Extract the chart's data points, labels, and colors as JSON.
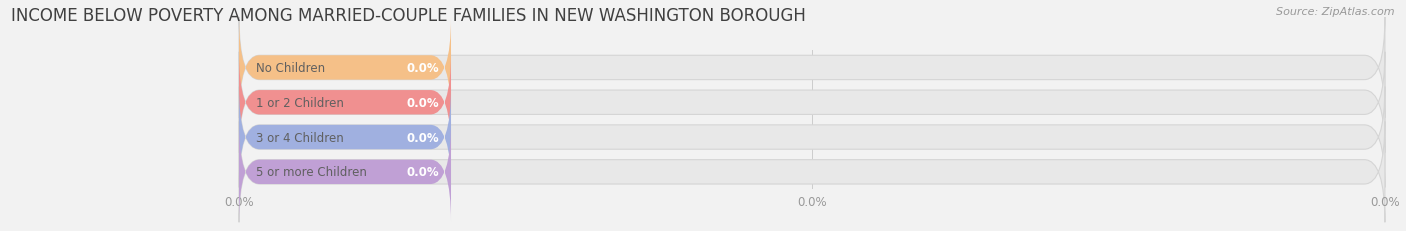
{
  "title": "INCOME BELOW POVERTY AMONG MARRIED-COUPLE FAMILIES IN NEW WASHINGTON BOROUGH",
  "source": "Source: ZipAtlas.com",
  "categories": [
    "No Children",
    "1 or 2 Children",
    "3 or 4 Children",
    "5 or more Children"
  ],
  "values": [
    0.0,
    0.0,
    0.0,
    0.0
  ],
  "bar_colors": [
    "#f5c088",
    "#f09090",
    "#a0b0e0",
    "#c0a0d5"
  ],
  "background_color": "#f2f2f2",
  "bar_bg_color": "#e8e8e8",
  "bar_bg_edge_color": "#d5d5d5",
  "title_fontsize": 12,
  "label_fontsize": 8.5,
  "tick_fontsize": 8.5,
  "source_fontsize": 8
}
